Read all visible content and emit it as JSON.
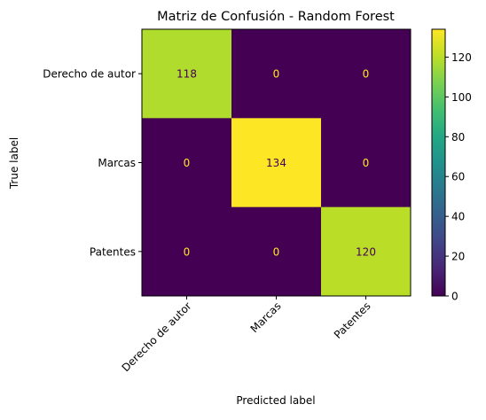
{
  "chart_data": {
    "type": "heatmap",
    "title": "Matriz de Confusión - Random Forest",
    "xlabel": "Predicted label",
    "ylabel": "True label",
    "x_categories": [
      "Derecho de autor",
      "Marcas",
      "Patentes"
    ],
    "y_categories": [
      "Derecho de autor",
      "Marcas",
      "Patentes"
    ],
    "matrix": [
      [
        118,
        0,
        0
      ],
      [
        0,
        134,
        0
      ],
      [
        0,
        0,
        120
      ]
    ],
    "colormap": "viridis",
    "colorbar": {
      "range": [
        0,
        134
      ],
      "ticks": [
        0,
        20,
        40,
        60,
        80,
        100,
        120
      ]
    },
    "grid": false
  }
}
